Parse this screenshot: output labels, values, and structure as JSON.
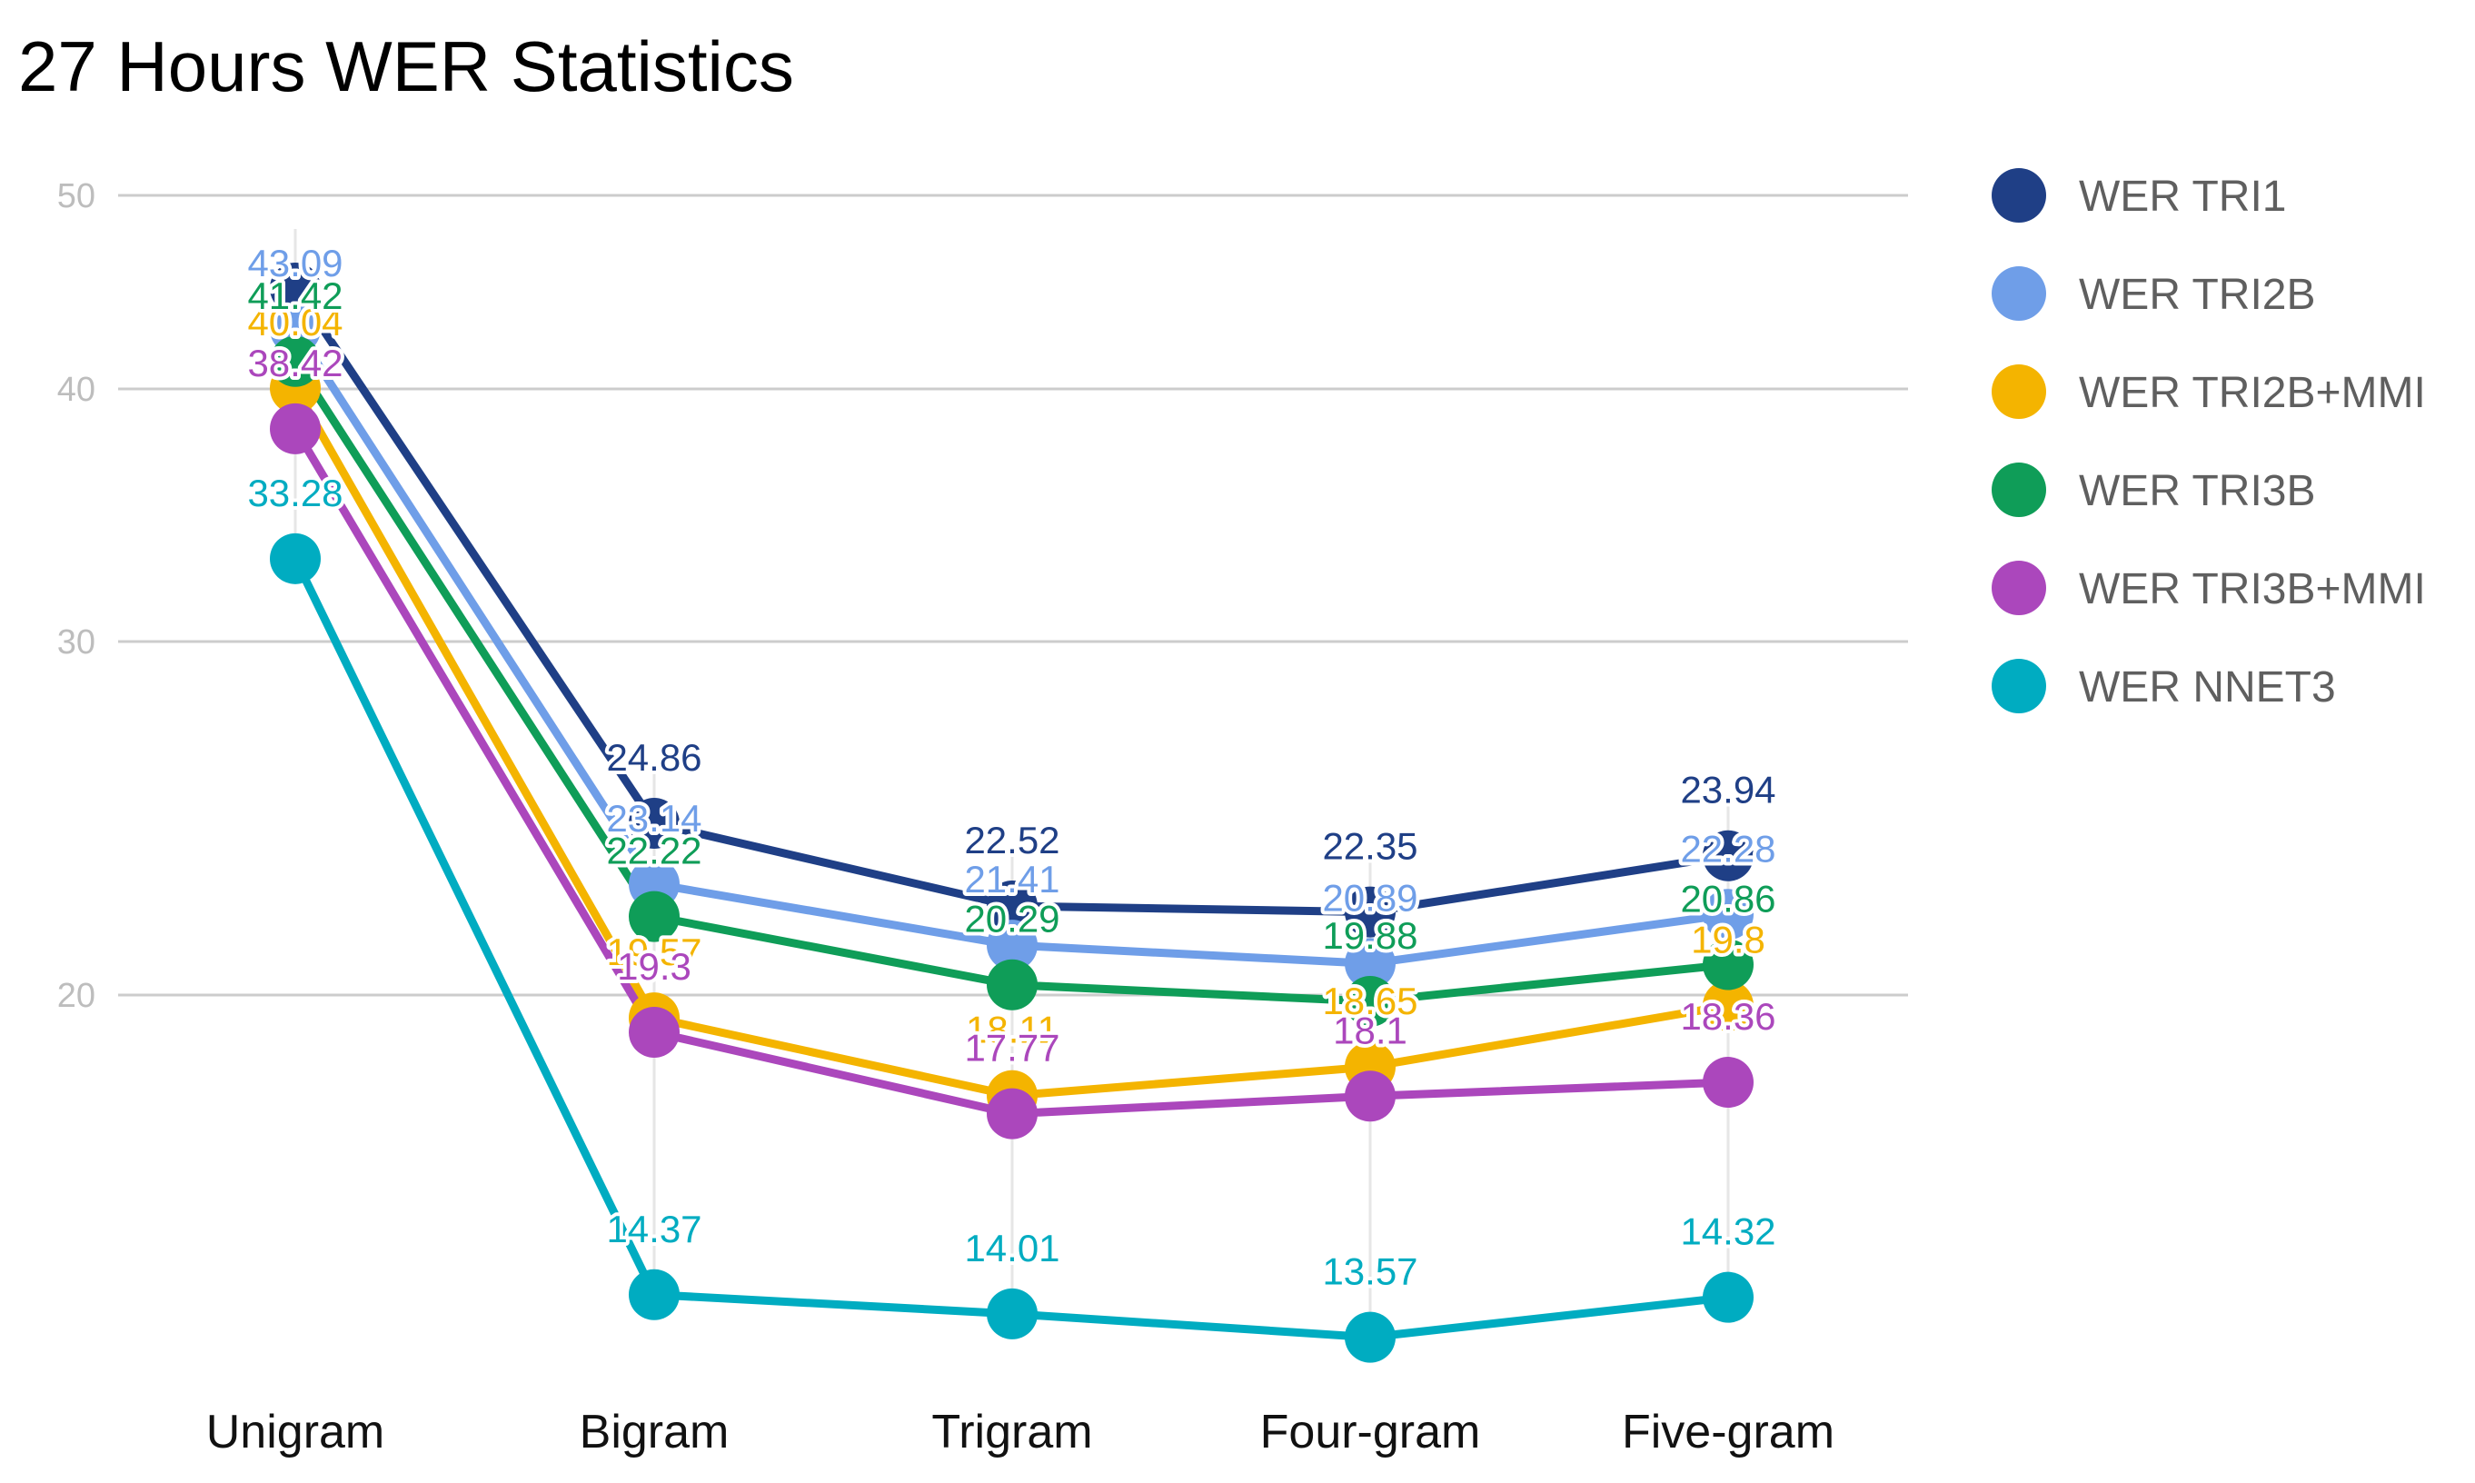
{
  "chart_data": {
    "type": "line",
    "title": "27 Hours WER Statistics",
    "xlabel": "",
    "ylabel": "",
    "categories": [
      "Unigram",
      "Bigram",
      "Trigram",
      "Four-gram",
      "Five-gram"
    ],
    "y_ticks": [
      "20",
      "30",
      "40",
      "50"
    ],
    "grid": true,
    "legend_position": "right",
    "series": [
      {
        "name": "WER TRI1",
        "color": "#1f3f86",
        "values": [
          45.21,
          24.86,
          22.52,
          22.35,
          23.94
        ]
      },
      {
        "name": "WER TRI2B",
        "color": "#6f9ee8",
        "values": [
          43.09,
          23.14,
          21.41,
          20.89,
          22.28
        ]
      },
      {
        "name": "WER TRI2B+MMI",
        "color": "#f4b400",
        "values": [
          40.04,
          19.57,
          18.11,
          18.65,
          19.8
        ]
      },
      {
        "name": "WER TRI3B",
        "color": "#0f9d58",
        "values": [
          41.42,
          22.22,
          20.29,
          19.88,
          20.86
        ]
      },
      {
        "name": "WER TRI3B+MMI",
        "color": "#ab47bc",
        "values": [
          38.42,
          19.3,
          17.77,
          18.1,
          18.36
        ]
      },
      {
        "name": "WER NNET3",
        "color": "#00acc1",
        "values": [
          33.28,
          14.37,
          14.01,
          13.57,
          14.32
        ]
      }
    ],
    "data_labels": [
      [
        "",
        "24.86",
        "22.52",
        "22.35",
        "23.94"
      ],
      [
        "43.09",
        "23.14",
        "21.41",
        "20.89",
        "22.28"
      ],
      [
        "40.04",
        "19.57",
        "18.11",
        "18.65",
        "19.8"
      ],
      [
        "41.42",
        "22.22",
        "20.29",
        "19.88",
        "20.86"
      ],
      [
        "38.42",
        "19.3",
        "17.77",
        "18.1",
        "18.36"
      ],
      [
        "33.28",
        "14.37",
        "14.01",
        "13.57",
        "14.32"
      ]
    ]
  }
}
